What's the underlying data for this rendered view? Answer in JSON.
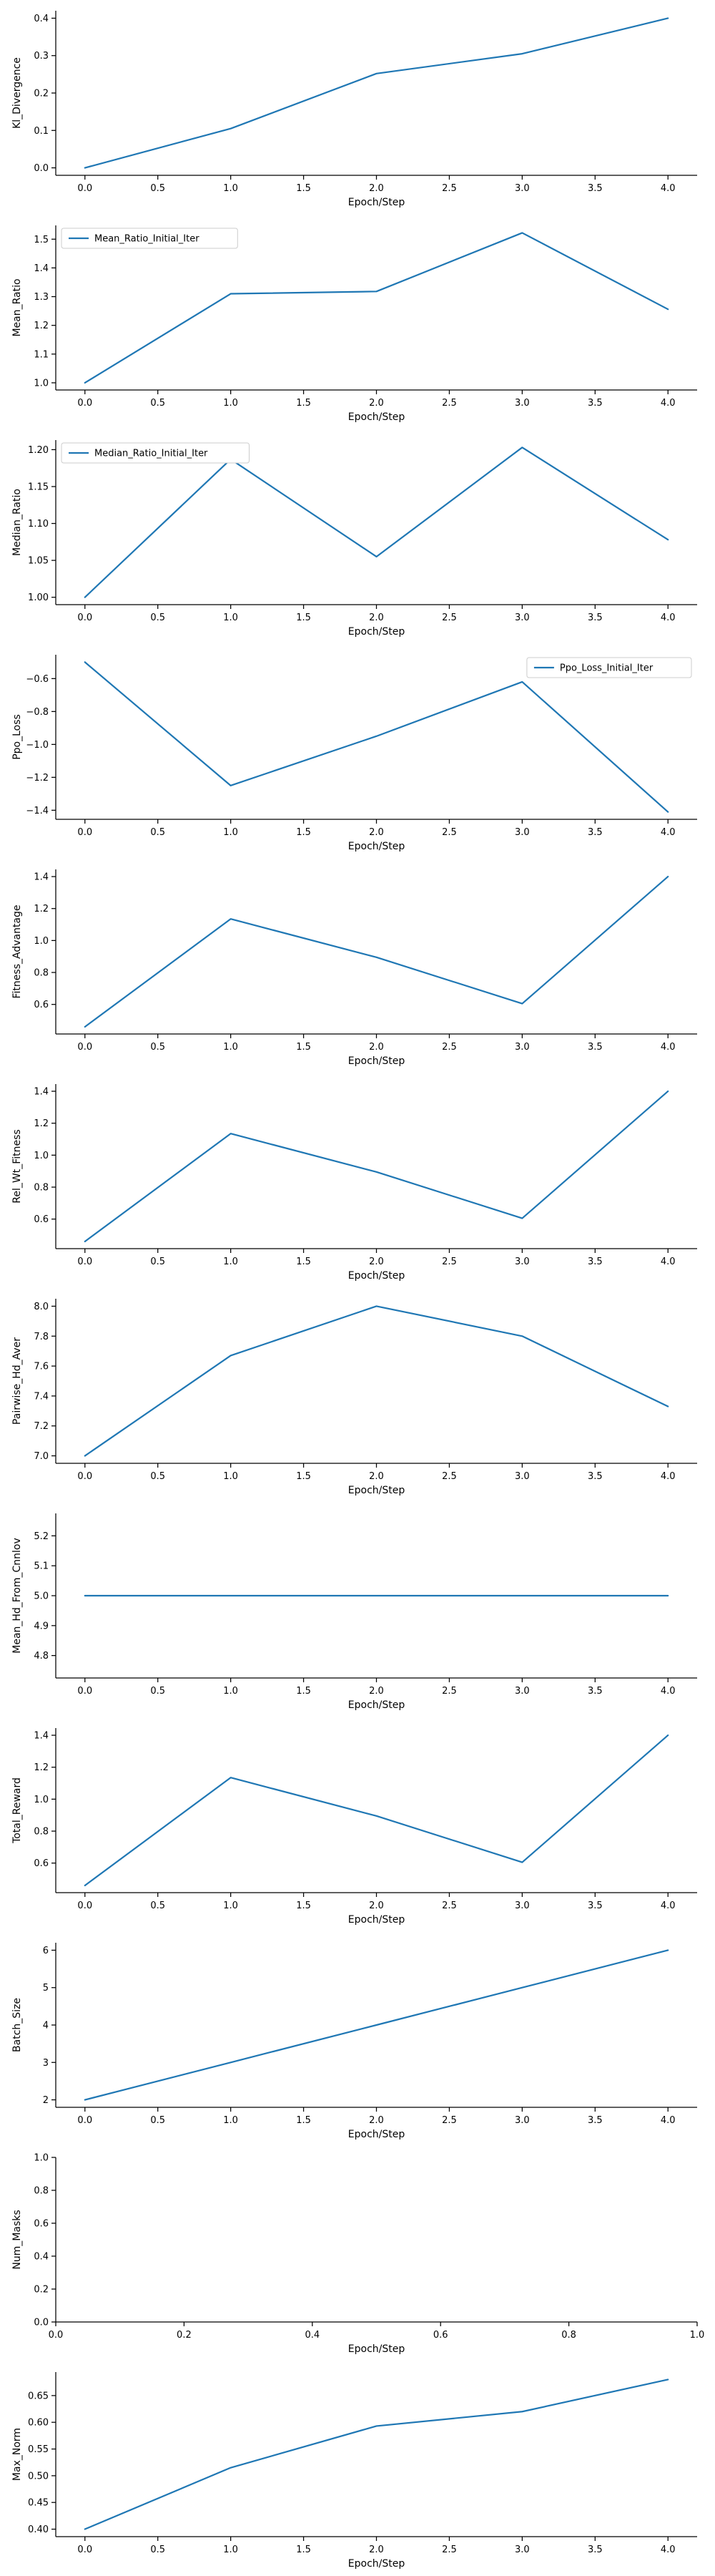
{
  "colors": {
    "series": "#1f77b4",
    "axis": "#000000"
  },
  "chart_data": [
    {
      "type": "line",
      "xlabel": "Epoch/Step",
      "ylabel": "Kl_Divergence",
      "x": [
        0,
        1,
        2,
        3,
        4
      ],
      "series": [
        {
          "values": [
            0.0,
            0.105,
            0.252,
            0.305,
            0.4
          ]
        }
      ],
      "xlim": [
        -0.2,
        4.2
      ],
      "ylim": [
        -0.02,
        0.42
      ],
      "xticks": [
        0.0,
        0.5,
        1.0,
        1.5,
        2.0,
        2.5,
        3.0,
        3.5,
        4.0
      ],
      "xtick_labels": [
        "0.0",
        "0.5",
        "1.0",
        "1.5",
        "2.0",
        "2.5",
        "3.0",
        "3.5",
        "4.0"
      ],
      "yticks": [
        0.0,
        0.1,
        0.2,
        0.3,
        0.4
      ],
      "ytick_labels": [
        "0.0",
        "0.1",
        "0.2",
        "0.3",
        "0.4"
      ],
      "legend": null,
      "grid": false
    },
    {
      "type": "line",
      "xlabel": "Epoch/Step",
      "ylabel": "Mean_Ratio",
      "x": [
        0,
        1,
        2,
        3,
        4
      ],
      "series": [
        {
          "name": "Mean_Ratio_Initial_Iter",
          "values": [
            1.0,
            1.31,
            1.318,
            1.522,
            1.256
          ]
        }
      ],
      "xlim": [
        -0.2,
        4.2
      ],
      "ylim": [
        0.975,
        1.548
      ],
      "xticks": [
        0.0,
        0.5,
        1.0,
        1.5,
        2.0,
        2.5,
        3.0,
        3.5,
        4.0
      ],
      "xtick_labels": [
        "0.0",
        "0.5",
        "1.0",
        "1.5",
        "2.0",
        "2.5",
        "3.0",
        "3.5",
        "4.0"
      ],
      "yticks": [
        1.0,
        1.1,
        1.2,
        1.3,
        1.4,
        1.5
      ],
      "ytick_labels": [
        "1.0",
        "1.1",
        "1.2",
        "1.3",
        "1.4",
        "1.5"
      ],
      "legend": "top-left",
      "grid": false
    },
    {
      "type": "line",
      "xlabel": "Epoch/Step",
      "ylabel": "Median_Ratio",
      "x": [
        0,
        1,
        2,
        3,
        4
      ],
      "series": [
        {
          "name": "Median_Ratio_Initial_Iter",
          "values": [
            1.0,
            1.187,
            1.055,
            1.203,
            1.078
          ]
        }
      ],
      "xlim": [
        -0.2,
        4.2
      ],
      "ylim": [
        0.99,
        1.213
      ],
      "xticks": [
        0.0,
        0.5,
        1.0,
        1.5,
        2.0,
        2.5,
        3.0,
        3.5,
        4.0
      ],
      "xtick_labels": [
        "0.0",
        "0.5",
        "1.0",
        "1.5",
        "2.0",
        "2.5",
        "3.0",
        "3.5",
        "4.0"
      ],
      "yticks": [
        1.0,
        1.05,
        1.1,
        1.15,
        1.2
      ],
      "ytick_labels": [
        "1.00",
        "1.05",
        "1.10",
        "1.15",
        "1.20"
      ],
      "legend": "top-left",
      "grid": false
    },
    {
      "type": "line",
      "xlabel": "Epoch/Step",
      "ylabel": "Ppo_Loss",
      "x": [
        0,
        1,
        2,
        3,
        4
      ],
      "series": [
        {
          "name": "Ppo_Loss_Initial_Iter",
          "values": [
            -0.5,
            -1.25,
            -0.95,
            -0.62,
            -1.41
          ]
        }
      ],
      "xlim": [
        -0.2,
        4.2
      ],
      "ylim": [
        -1.455,
        -0.455
      ],
      "xticks": [
        0.0,
        0.5,
        1.0,
        1.5,
        2.0,
        2.5,
        3.0,
        3.5,
        4.0
      ],
      "xtick_labels": [
        "0.0",
        "0.5",
        "1.0",
        "1.5",
        "2.0",
        "2.5",
        "3.0",
        "3.5",
        "4.0"
      ],
      "yticks": [
        -1.4,
        -1.2,
        -1.0,
        -0.8,
        -0.6
      ],
      "ytick_labels": [
        "−1.4",
        "−1.2",
        "−1.0",
        "−0.8",
        "−0.6"
      ],
      "legend": "top-right",
      "grid": false
    },
    {
      "type": "line",
      "xlabel": "Epoch/Step",
      "ylabel": "Fitness_Advantage",
      "x": [
        0,
        1,
        2,
        3,
        4
      ],
      "series": [
        {
          "values": [
            0.46,
            1.135,
            0.895,
            0.605,
            1.4
          ]
        }
      ],
      "xlim": [
        -0.2,
        4.2
      ],
      "ylim": [
        0.415,
        1.445
      ],
      "xticks": [
        0.0,
        0.5,
        1.0,
        1.5,
        2.0,
        2.5,
        3.0,
        3.5,
        4.0
      ],
      "xtick_labels": [
        "0.0",
        "0.5",
        "1.0",
        "1.5",
        "2.0",
        "2.5",
        "3.0",
        "3.5",
        "4.0"
      ],
      "yticks": [
        0.6,
        0.8,
        1.0,
        1.2,
        1.4
      ],
      "ytick_labels": [
        "0.6",
        "0.8",
        "1.0",
        "1.2",
        "1.4"
      ],
      "legend": null,
      "grid": false
    },
    {
      "type": "line",
      "xlabel": "Epoch/Step",
      "ylabel": "Rel_Wt_Fitness",
      "x": [
        0,
        1,
        2,
        3,
        4
      ],
      "series": [
        {
          "values": [
            0.46,
            1.135,
            0.895,
            0.605,
            1.4
          ]
        }
      ],
      "xlim": [
        -0.2,
        4.2
      ],
      "ylim": [
        0.415,
        1.445
      ],
      "xticks": [
        0.0,
        0.5,
        1.0,
        1.5,
        2.0,
        2.5,
        3.0,
        3.5,
        4.0
      ],
      "xtick_labels": [
        "0.0",
        "0.5",
        "1.0",
        "1.5",
        "2.0",
        "2.5",
        "3.0",
        "3.5",
        "4.0"
      ],
      "yticks": [
        0.6,
        0.8,
        1.0,
        1.2,
        1.4
      ],
      "ytick_labels": [
        "0.6",
        "0.8",
        "1.0",
        "1.2",
        "1.4"
      ],
      "legend": null,
      "grid": false
    },
    {
      "type": "line",
      "xlabel": "Epoch/Step",
      "ylabel": "Pairwise_Hd_Aver",
      "x": [
        0,
        1,
        2,
        3,
        4
      ],
      "series": [
        {
          "values": [
            7.0,
            7.67,
            8.0,
            7.8,
            7.33
          ]
        }
      ],
      "xlim": [
        -0.2,
        4.2
      ],
      "ylim": [
        6.95,
        8.05
      ],
      "xticks": [
        0.0,
        0.5,
        1.0,
        1.5,
        2.0,
        2.5,
        3.0,
        3.5,
        4.0
      ],
      "xtick_labels": [
        "0.0",
        "0.5",
        "1.0",
        "1.5",
        "2.0",
        "2.5",
        "3.0",
        "3.5",
        "4.0"
      ],
      "yticks": [
        7.0,
        7.2,
        7.4,
        7.6,
        7.8,
        8.0
      ],
      "ytick_labels": [
        "7.0",
        "7.2",
        "7.4",
        "7.6",
        "7.8",
        "8.0"
      ],
      "legend": null,
      "grid": false
    },
    {
      "type": "line",
      "xlabel": "Epoch/Step",
      "ylabel": "Mean_Hd_From_Cnnlov",
      "x": [
        0,
        1,
        2,
        3,
        4
      ],
      "series": [
        {
          "values": [
            5.0,
            5.0,
            5.0,
            5.0,
            5.0
          ]
        }
      ],
      "xlim": [
        -0.2,
        4.2
      ],
      "ylim": [
        4.725,
        5.275
      ],
      "xticks": [
        0.0,
        0.5,
        1.0,
        1.5,
        2.0,
        2.5,
        3.0,
        3.5,
        4.0
      ],
      "xtick_labels": [
        "0.0",
        "0.5",
        "1.0",
        "1.5",
        "2.0",
        "2.5",
        "3.0",
        "3.5",
        "4.0"
      ],
      "yticks": [
        4.8,
        4.9,
        5.0,
        5.1,
        5.2
      ],
      "ytick_labels": [
        "4.8",
        "4.9",
        "5.0",
        "5.1",
        "5.2"
      ],
      "legend": null,
      "grid": false
    },
    {
      "type": "line",
      "xlabel": "Epoch/Step",
      "ylabel": "Total_Reward",
      "x": [
        0,
        1,
        2,
        3,
        4
      ],
      "series": [
        {
          "values": [
            0.46,
            1.135,
            0.895,
            0.605,
            1.4
          ]
        }
      ],
      "xlim": [
        -0.2,
        4.2
      ],
      "ylim": [
        0.415,
        1.445
      ],
      "xticks": [
        0.0,
        0.5,
        1.0,
        1.5,
        2.0,
        2.5,
        3.0,
        3.5,
        4.0
      ],
      "xtick_labels": [
        "0.0",
        "0.5",
        "1.0",
        "1.5",
        "2.0",
        "2.5",
        "3.0",
        "3.5",
        "4.0"
      ],
      "yticks": [
        0.6,
        0.8,
        1.0,
        1.2,
        1.4
      ],
      "ytick_labels": [
        "0.6",
        "0.8",
        "1.0",
        "1.2",
        "1.4"
      ],
      "legend": null,
      "grid": false
    },
    {
      "type": "line",
      "xlabel": "Epoch/Step",
      "ylabel": "Batch_Size",
      "x": [
        0,
        1,
        2,
        3,
        4
      ],
      "series": [
        {
          "values": [
            2,
            3,
            4,
            5,
            6
          ]
        }
      ],
      "xlim": [
        -0.2,
        4.2
      ],
      "ylim": [
        1.8,
        6.2
      ],
      "xticks": [
        0.0,
        0.5,
        1.0,
        1.5,
        2.0,
        2.5,
        3.0,
        3.5,
        4.0
      ],
      "xtick_labels": [
        "0.0",
        "0.5",
        "1.0",
        "1.5",
        "2.0",
        "2.5",
        "3.0",
        "3.5",
        "4.0"
      ],
      "yticks": [
        2,
        3,
        4,
        5,
        6
      ],
      "ytick_labels": [
        "2",
        "3",
        "4",
        "5",
        "6"
      ],
      "legend": null,
      "grid": false
    },
    {
      "type": "line",
      "xlabel": "Epoch/Step",
      "ylabel": "Num_Masks",
      "x": [],
      "series": [],
      "xlim": [
        0.0,
        1.0
      ],
      "ylim": [
        0.0,
        1.0
      ],
      "xticks": [
        0.0,
        0.2,
        0.4,
        0.6,
        0.8,
        1.0
      ],
      "xtick_labels": [
        "0.0",
        "0.2",
        "0.4",
        "0.6",
        "0.8",
        "1.0"
      ],
      "yticks": [
        0.0,
        0.2,
        0.4,
        0.6,
        0.8,
        1.0
      ],
      "ytick_labels": [
        "0.0",
        "0.2",
        "0.4",
        "0.6",
        "0.8",
        "1.0"
      ],
      "legend": null,
      "grid": false
    },
    {
      "type": "line",
      "xlabel": "Epoch/Step",
      "ylabel": "Max_Norm",
      "x": [
        0,
        1,
        2,
        3,
        4
      ],
      "series": [
        {
          "values": [
            0.4,
            0.515,
            0.593,
            0.62,
            0.68
          ]
        }
      ],
      "xlim": [
        -0.2,
        4.2
      ],
      "ylim": [
        0.386,
        0.694
      ],
      "xticks": [
        0.0,
        0.5,
        1.0,
        1.5,
        2.0,
        2.5,
        3.0,
        3.5,
        4.0
      ],
      "xtick_labels": [
        "0.0",
        "0.5",
        "1.0",
        "1.5",
        "2.0",
        "2.5",
        "3.0",
        "3.5",
        "4.0"
      ],
      "yticks": [
        0.4,
        0.45,
        0.5,
        0.55,
        0.6,
        0.65
      ],
      "ytick_labels": [
        "0.40",
        "0.45",
        "0.50",
        "0.55",
        "0.60",
        "0.65"
      ],
      "legend": null,
      "grid": false
    }
  ]
}
